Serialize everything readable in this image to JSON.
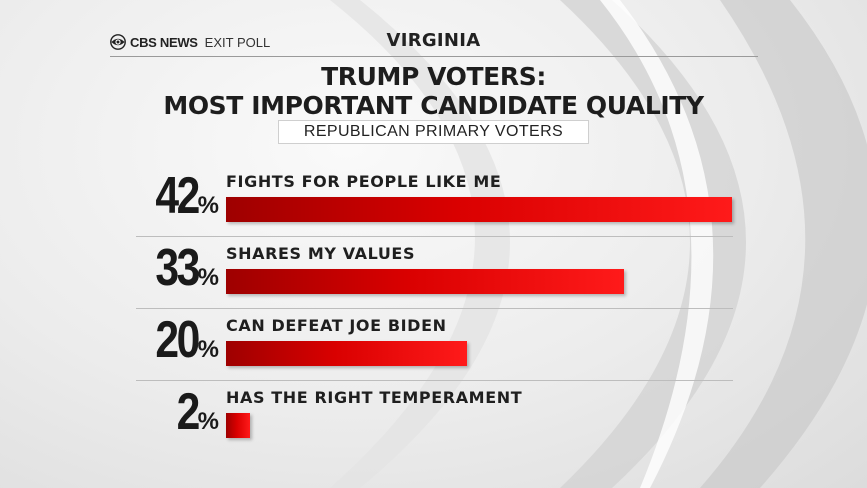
{
  "header": {
    "brand": "CBS NEWS",
    "brand_suffix": "EXIT POLL",
    "state": "VIRGINIA"
  },
  "chart_data": {
    "type": "bar",
    "orientation": "horizontal",
    "title_line1": "TRUMP VOTERS:",
    "title_line2": "MOST IMPORTANT CANDIDATE QUALITY",
    "subtitle": "REPUBLICAN PRIMARY VOTERS",
    "categories": [
      "FIGHTS FOR PEOPLE LIKE ME",
      "SHARES MY VALUES",
      "CAN DEFEAT JOE BIDEN",
      "HAS THE RIGHT TEMPERAMENT"
    ],
    "values": [
      42,
      33,
      20,
      2
    ],
    "value_labels": [
      "42",
      "33",
      "20",
      "2"
    ],
    "value_suffix": "%",
    "xlim": [
      0,
      42
    ],
    "bar_color": "#d90000",
    "grid": false,
    "legend": "none"
  }
}
